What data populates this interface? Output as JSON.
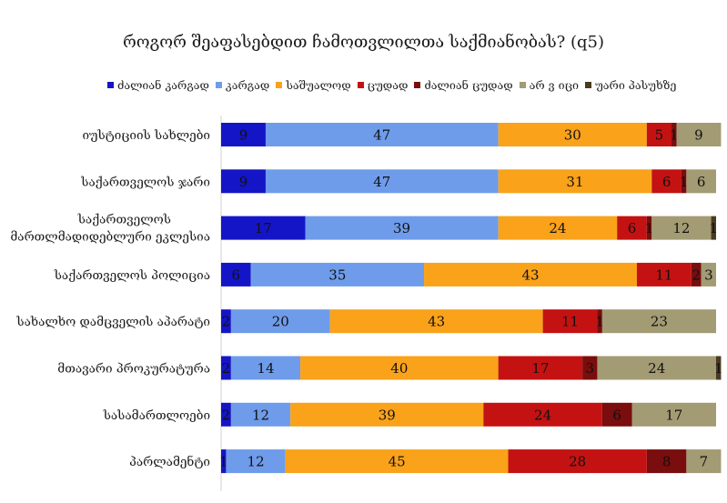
{
  "chart_data": {
    "type": "bar",
    "orientation": "horizontal",
    "stacked": true,
    "title": "როგორ შეაფასებდით ჩამოთვლილთა საქმიანობას? (q5)",
    "xlim": [
      0,
      100
    ],
    "grid": false,
    "legend_position": "top",
    "categories": [
      [
        "იუსტიციის სახლები"
      ],
      [
        "საქართველოს ჯარი"
      ],
      [
        "საქართველოს",
        "მართლმადიდებლური ეკლესია"
      ],
      [
        "საქართველოს პოლიცია"
      ],
      [
        "სახალხო დამცველის აპარატი"
      ],
      [
        "მთავარი პროკურატურა"
      ],
      [
        "სასამართლოები"
      ],
      [
        "პარლამენტი"
      ]
    ],
    "series": [
      {
        "name": "ძალიან კარგად",
        "color": "#1515c8",
        "label_color": "#ffffff",
        "values": [
          9,
          9,
          17,
          6,
          2,
          2,
          2,
          1
        ]
      },
      {
        "name": "კარგად",
        "color": "#6e9cea",
        "label_color": "#111111",
        "values": [
          47,
          47,
          39,
          35,
          20,
          14,
          12,
          12
        ]
      },
      {
        "name": "საშუალოდ",
        "color": "#f9a21a",
        "label_color": "#111111",
        "values": [
          30,
          31,
          24,
          43,
          43,
          40,
          39,
          45
        ]
      },
      {
        "name": "ცუდად",
        "color": "#c41212",
        "label_color": "#111111",
        "values": [
          5,
          6,
          6,
          11,
          11,
          17,
          24,
          28
        ]
      },
      {
        "name": "ძალიან ცუდად",
        "color": "#7a0d0d",
        "label_color": "#ffffff",
        "values": [
          1,
          1,
          1,
          2,
          1,
          3,
          6,
          8
        ]
      },
      {
        "name": "არ ვ იცი",
        "color": "#a39b73",
        "label_color": "#111111",
        "values": [
          9,
          6,
          12,
          3,
          23,
          24,
          17,
          7
        ]
      },
      {
        "name": "უარი პასუხზე",
        "color": "#4a3b1f",
        "label_color": "#ffffff",
        "values": [
          0,
          0,
          1,
          0,
          0,
          1,
          0,
          0
        ]
      }
    ]
  }
}
